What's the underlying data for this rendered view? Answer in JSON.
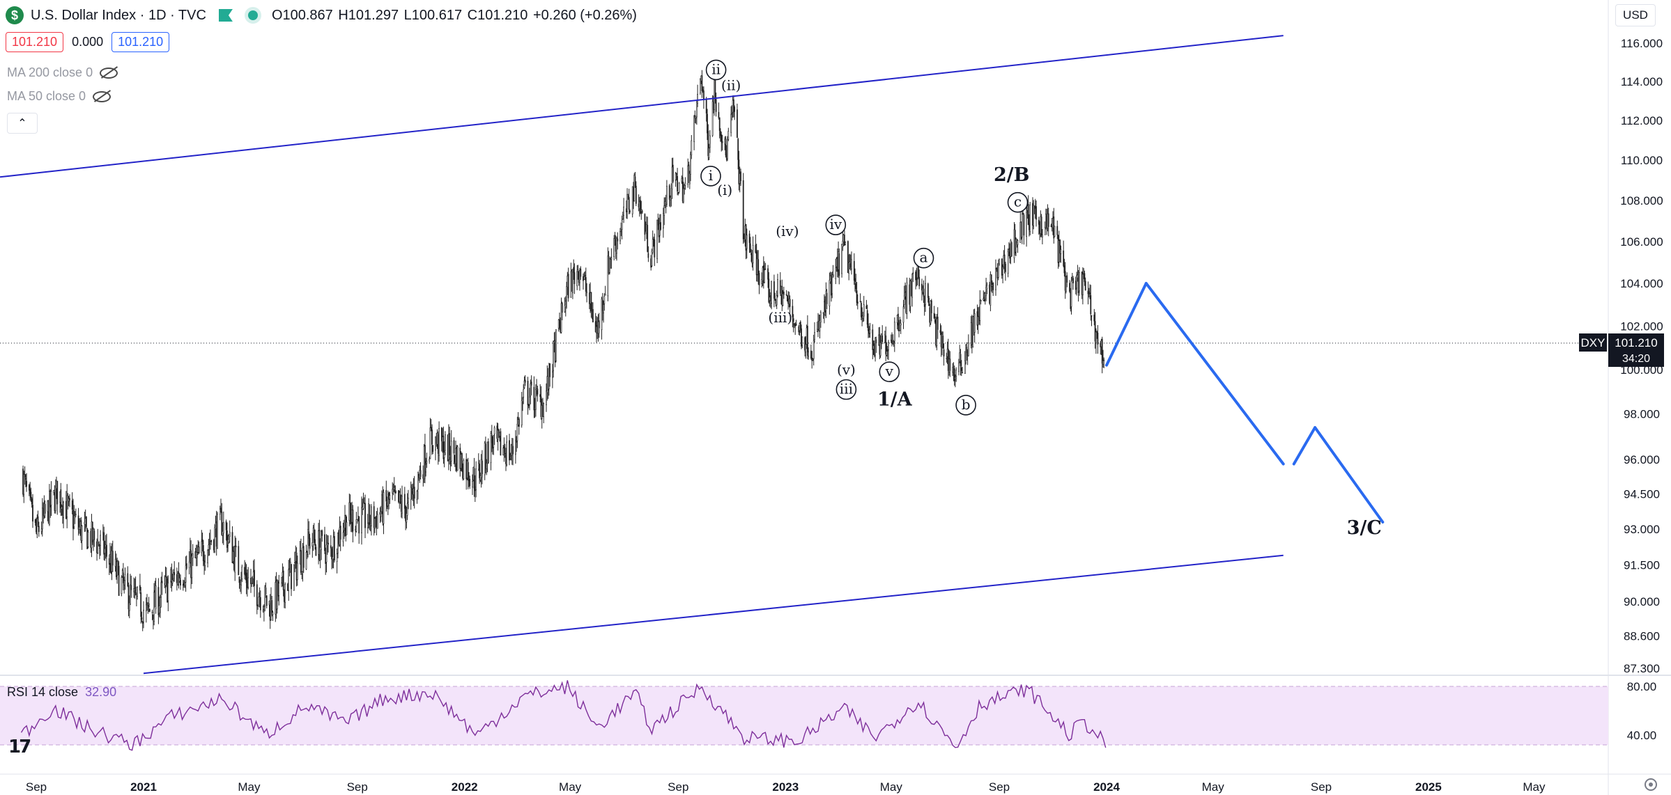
{
  "header": {
    "symbol_logo": "$",
    "title": "U.S. Dollar Index · 1D · TVC",
    "open": "O100.867",
    "high": "H101.297",
    "low": "L100.617",
    "close": "C101.210",
    "change": "+0.260 (+0.26%)",
    "bid": "101.210",
    "spread": "0.000",
    "ask": "101.210",
    "currency": "USD"
  },
  "indicators": [
    {
      "label": "MA 200 close 0"
    },
    {
      "label": "MA 50 close 0"
    }
  ],
  "rsi": {
    "label": "RSI 14 close",
    "value": "32.90",
    "ticks": [
      "80.00",
      "40.00"
    ]
  },
  "price_tag": {
    "symbol": "DXY",
    "price": "101.210",
    "countdown": "34:20"
  },
  "colors": {
    "channel": "#2323c8",
    "projection": "#2a6af0",
    "rsi_line": "#7e2f9b",
    "rsi_band": "#f3e4fa",
    "up": "#26a69a",
    "candles": "#222222"
  },
  "chart_data": {
    "type": "line",
    "title": "U.S. Dollar Index · 1D · TVC",
    "y_axis_ticks": [
      "116.000",
      "114.000",
      "112.000",
      "110.000",
      "108.000",
      "106.000",
      "104.000",
      "102.000",
      "100.000",
      "98.000",
      "96.000",
      "94.500",
      "93.000",
      "91.500",
      "90.000",
      "88.600",
      "87.300"
    ],
    "x_axis_ticks": [
      "Sep",
      "2021",
      "May",
      "Sep",
      "2022",
      "May",
      "Sep",
      "2023",
      "May",
      "Sep",
      "2024",
      "May",
      "Sep",
      "2025",
      "May"
    ],
    "price_series": [
      [
        "2020-08-15",
        95.5
      ],
      [
        "2020-09-01",
        92.8
      ],
      [
        "2020-09-25",
        94.6
      ],
      [
        "2020-10-20",
        93.0
      ],
      [
        "2020-11-15",
        92.3
      ],
      [
        "2020-12-10",
        90.5
      ],
      [
        "2021-01-06",
        89.5
      ],
      [
        "2021-02-01",
        90.8
      ],
      [
        "2021-03-05",
        91.8
      ],
      [
        "2021-03-31",
        93.3
      ],
      [
        "2021-04-20",
        91.3
      ],
      [
        "2021-05-25",
        89.8
      ],
      [
        "2021-06-20",
        91.2
      ],
      [
        "2021-07-10",
        92.6
      ],
      [
        "2021-08-01",
        92.0
      ],
      [
        "2021-08-20",
        93.5
      ],
      [
        "2021-09-20",
        93.4
      ],
      [
        "2021-10-10",
        94.3
      ],
      [
        "2021-10-28",
        93.8
      ],
      [
        "2021-11-24",
        96.9
      ],
      [
        "2021-12-20",
        96.3
      ],
      [
        "2022-01-14",
        95.1
      ],
      [
        "2022-02-01",
        96.8
      ],
      [
        "2022-02-24",
        96.2
      ],
      [
        "2022-03-10",
        99.0
      ],
      [
        "2022-04-01",
        98.4
      ],
      [
        "2022-04-28",
        103.8
      ],
      [
        "2022-05-12",
        104.8
      ],
      [
        "2022-06-01",
        101.7
      ],
      [
        "2022-06-15",
        105.2
      ],
      [
        "2022-07-14",
        108.7
      ],
      [
        "2022-08-01",
        105.3
      ],
      [
        "2022-08-25",
        109.0
      ],
      [
        "2022-09-10",
        108.5
      ],
      [
        "2022-09-27",
        114.4
      ],
      [
        "2022-10-05",
        110.8
      ],
      [
        "2022-10-12",
        113.6
      ],
      [
        "2022-10-25",
        110.2
      ],
      [
        "2022-11-03",
        112.7
      ],
      [
        "2022-11-15",
        106.2
      ],
      [
        "2022-12-01",
        104.7
      ],
      [
        "2022-12-14",
        103.5
      ],
      [
        "2022-12-30",
        103.5
      ],
      [
        "2023-01-15",
        101.9
      ],
      [
        "2023-02-01",
        101.0
      ],
      [
        "2023-03-08",
        105.7
      ],
      [
        "2023-04-13",
        100.8
      ],
      [
        "2023-05-01",
        101.5
      ],
      [
        "2023-05-31",
        104.6
      ],
      [
        "2023-06-20",
        101.9
      ],
      [
        "2023-07-14",
        99.6
      ],
      [
        "2023-08-10",
        102.8
      ],
      [
        "2023-09-05",
        104.9
      ],
      [
        "2023-10-03",
        107.2
      ],
      [
        "2023-11-01",
        106.7
      ],
      [
        "2023-11-20",
        103.4
      ],
      [
        "2023-12-05",
        104.2
      ],
      [
        "2023-12-27",
        100.6
      ],
      [
        "2023-12-31",
        101.2
      ]
    ],
    "projection": [
      [
        "2024-01-01",
        100.2
      ],
      [
        "2024-02-15",
        104.0
      ],
      [
        "2024-07-20",
        95.8
      ],
      [
        "2024-08-01",
        95.8
      ],
      [
        "2024-08-25",
        97.4
      ],
      [
        "2024-11-10",
        93.3
      ]
    ],
    "channel_upper": [
      [
        "2020-08-01",
        109.2
      ],
      [
        "2024-07-20",
        116.4
      ]
    ],
    "channel_lower": [
      [
        "2021-01-01",
        87.1
      ],
      [
        "2024-07-20",
        91.9
      ]
    ],
    "wave_labels": [
      {
        "text": "ii",
        "circled": true,
        "x": "2022-10-14",
        "y": 114.6
      },
      {
        "text": "(ii)",
        "circled": false,
        "x": "2022-10-31",
        "y": 113.8
      },
      {
        "text": "i",
        "circled": true,
        "x": "2022-10-08",
        "y": 109.2
      },
      {
        "text": "(i)",
        "circled": false,
        "x": "2022-10-24",
        "y": 108.5
      },
      {
        "text": "(iv)",
        "circled": false,
        "x": "2023-01-03",
        "y": 106.5
      },
      {
        "text": "iv",
        "circled": true,
        "x": "2023-02-27",
        "y": 106.8
      },
      {
        "text": "(iii)",
        "circled": false,
        "x": "2022-12-26",
        "y": 102.4
      },
      {
        "text": "(v)",
        "circled": false,
        "x": "2023-03-11",
        "y": 100.0
      },
      {
        "text": "iii",
        "circled": true,
        "x": "2023-03-11",
        "y": 99.1
      },
      {
        "text": "v",
        "circled": true,
        "x": "2023-04-29",
        "y": 99.9
      },
      {
        "text": "1/A",
        "circled": false,
        "bold": true,
        "x": "2023-05-05",
        "y": 98.6
      },
      {
        "text": "a",
        "circled": true,
        "x": "2023-06-07",
        "y": 105.2
      },
      {
        "text": "b",
        "circled": true,
        "x": "2023-07-25",
        "y": 98.4
      },
      {
        "text": "2/B",
        "circled": false,
        "bold": true,
        "x": "2023-09-15",
        "y": 109.2
      },
      {
        "text": "c",
        "circled": true,
        "x": "2023-09-22",
        "y": 107.9
      },
      {
        "text": "3/C",
        "circled": false,
        "bold": true,
        "x": "2024-10-20",
        "y": 93.0
      }
    ],
    "rsi_series": [
      [
        "2020-08-15",
        40
      ],
      [
        "2020-09-20",
        62
      ],
      [
        "2020-11-01",
        45
      ],
      [
        "2020-12-20",
        32
      ],
      [
        "2021-02-01",
        55
      ],
      [
        "2021-04-01",
        70
      ],
      [
        "2021-05-20",
        40
      ],
      [
        "2021-07-05",
        64
      ],
      [
        "2021-08-20",
        50
      ],
      [
        "2021-10-01",
        70
      ],
      [
        "2021-11-25",
        75
      ],
      [
        "2022-01-15",
        40
      ],
      [
        "2022-03-10",
        72
      ],
      [
        "2022-04-28",
        80
      ],
      [
        "2022-06-01",
        46
      ],
      [
        "2022-07-14",
        75
      ],
      [
        "2022-08-01",
        45
      ],
      [
        "2022-09-27",
        80
      ],
      [
        "2022-11-15",
        38
      ],
      [
        "2023-01-15",
        35
      ],
      [
        "2023-03-08",
        62
      ],
      [
        "2023-04-13",
        38
      ],
      [
        "2023-05-31",
        68
      ],
      [
        "2023-07-14",
        30
      ],
      [
        "2023-08-10",
        65
      ],
      [
        "2023-10-03",
        78
      ],
      [
        "2023-11-20",
        40
      ],
      [
        "2023-12-05",
        52
      ],
      [
        "2023-12-31",
        33
      ]
    ]
  }
}
